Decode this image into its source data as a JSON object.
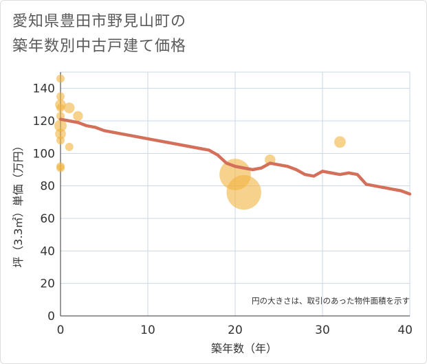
{
  "chart_data": {
    "type": "scatter+line",
    "title_line1": "愛知県豊田市野見山町の",
    "title_line2": "築年数別中古戸建て価格",
    "xlabel": "築年数（年）",
    "ylabel": "坪（3.3㎡）単価（万円）",
    "note": "円の大きさは、取引のあった物件面積を示す",
    "xlim": [
      0,
      40
    ],
    "ylim": [
      0,
      150
    ],
    "x_ticks": [
      "0",
      "10",
      "20",
      "30",
      "40"
    ],
    "y_ticks": [
      "0",
      "20",
      "40",
      "60",
      "80",
      "100",
      "120",
      "140"
    ],
    "x_tick_values": [
      0,
      10,
      20,
      30,
      40
    ],
    "y_tick_values": [
      0,
      20,
      40,
      60,
      80,
      100,
      120,
      140
    ],
    "colors": {
      "line": "#d4705a",
      "bubble": "#f2b441",
      "grid": "#c8d7e5",
      "text": "#333333"
    },
    "scatter": [
      {
        "x": 0,
        "y": 146,
        "size": 1.0
      },
      {
        "x": 0,
        "y": 135,
        "size": 1.0
      },
      {
        "x": 0,
        "y": 130,
        "size": 1.3
      },
      {
        "x": 0,
        "y": 128,
        "size": 1.0
      },
      {
        "x": 0,
        "y": 123,
        "size": 1.0
      },
      {
        "x": 0,
        "y": 117,
        "size": 1.5
      },
      {
        "x": 0,
        "y": 112,
        "size": 1.3
      },
      {
        "x": 0,
        "y": 108,
        "size": 1.0
      },
      {
        "x": 0,
        "y": 92,
        "size": 1.0
      },
      {
        "x": 0,
        "y": 91,
        "size": 1.0
      },
      {
        "x": 1,
        "y": 128,
        "size": 1.3
      },
      {
        "x": 1,
        "y": 104,
        "size": 1.0
      },
      {
        "x": 2,
        "y": 123,
        "size": 1.2
      },
      {
        "x": 20,
        "y": 87,
        "size": 3.8
      },
      {
        "x": 21,
        "y": 76,
        "size": 4.2
      },
      {
        "x": 24,
        "y": 96,
        "size": 1.3
      },
      {
        "x": 32,
        "y": 107,
        "size": 1.4
      }
    ],
    "line": {
      "x": [
        0,
        1,
        2,
        3,
        4,
        5,
        6,
        7,
        8,
        9,
        10,
        11,
        12,
        13,
        14,
        15,
        16,
        17,
        18,
        19,
        20,
        21,
        22,
        23,
        24,
        25,
        26,
        27,
        28,
        29,
        30,
        31,
        32,
        33,
        34,
        35,
        36,
        37,
        38,
        39,
        40
      ],
      "y": [
        121,
        120,
        119,
        117,
        116,
        114,
        113,
        112,
        111,
        110,
        109,
        108,
        107,
        106,
        105,
        104,
        103,
        102,
        99,
        94,
        92,
        91,
        90,
        91,
        94,
        93,
        92,
        90,
        87,
        86,
        89,
        88,
        87,
        88,
        87,
        81,
        80,
        79,
        78,
        77,
        75
      ]
    }
  }
}
